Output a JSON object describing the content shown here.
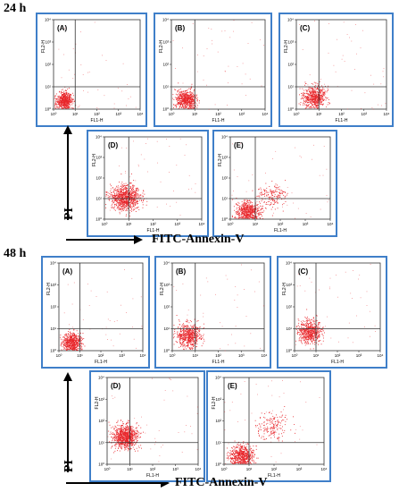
{
  "sections": [
    {
      "title": "24 h",
      "xlabel": "FITC-Annexin-V",
      "ylabel": "PI",
      "panels": [
        {
          "label": "(A)",
          "xtick_label": "FL1-H",
          "ytick_label": "FL2-H"
        },
        {
          "label": "(B)",
          "xtick_label": "FL1-H",
          "ytick_label": "FL2-H"
        },
        {
          "label": "(C)",
          "xtick_label": "FL1-H",
          "ytick_label": "FL2-H"
        },
        {
          "label": "(D)",
          "xtick_label": "FL1-H",
          "ytick_label": "FL2-H"
        },
        {
          "label": "(E)",
          "xtick_label": "FL1-H",
          "ytick_label": "FL2-H"
        }
      ]
    },
    {
      "title": "48 h",
      "xlabel": "FITC-Annexin-V",
      "ylabel": "PI",
      "panels": [
        {
          "label": "(A)",
          "xtick_label": "FL1-H",
          "ytick_label": "FL2-H"
        },
        {
          "label": "(B)",
          "xtick_label": "FL1-H",
          "ytick_label": "FL2-H"
        },
        {
          "label": "(C)",
          "xtick_label": "FL1-H",
          "ytick_label": "FL2-H"
        },
        {
          "label": "(D)",
          "xtick_label": "FL1-H",
          "ytick_label": "FL2-H"
        },
        {
          "label": "(E)",
          "xtick_label": "FL1-H",
          "ytick_label": "FL2-H"
        }
      ]
    }
  ],
  "chart_data": [
    {
      "type": "scatter",
      "title": "24 h",
      "xlabel": "FITC-Annexin-V",
      "ylabel": "PI",
      "xscale": "log",
      "yscale": "log",
      "xlim": [
        1,
        10000
      ],
      "ylim": [
        1,
        10000
      ],
      "xticks": [
        "10⁰",
        "10¹",
        "10²",
        "10³",
        "10⁴"
      ],
      "yticks": [
        "10⁰",
        "10¹",
        "10²",
        "10³",
        "10⁴"
      ],
      "quadrant_gate": {
        "x": 10,
        "y": 10
      },
      "point_color": "#e8262b",
      "panels": [
        {
          "label": "(A)",
          "clusters": [
            {
              "x": 3,
              "y": 2.5,
              "spread": 2.2,
              "density": "high"
            }
          ]
        },
        {
          "label": "(B)",
          "clusters": [
            {
              "x": 4,
              "y": 2.8,
              "spread": 2.4,
              "density": "high"
            }
          ]
        },
        {
          "label": "(C)",
          "clusters": [
            {
              "x": 6,
              "y": 3.5,
              "spread": 2.8,
              "density": "high"
            }
          ]
        },
        {
          "label": "(D)",
          "clusters": [
            {
              "x": 7,
              "y": 12,
              "spread": 3.5,
              "density": "very high"
            }
          ]
        },
        {
          "label": "(E)",
          "clusters": [
            {
              "x": 5,
              "y": 2.5,
              "spread": 2.6,
              "density": "high"
            },
            {
              "x": 40,
              "y": 15,
              "spread": 3.5,
              "density": "medium"
            }
          ]
        }
      ]
    },
    {
      "type": "scatter",
      "title": "48 h",
      "xlabel": "FITC-Annexin-V",
      "ylabel": "PI",
      "xscale": "log",
      "yscale": "log",
      "xlim": [
        1,
        10000
      ],
      "ylim": [
        1,
        10000
      ],
      "xticks": [
        "10⁰",
        "10¹",
        "10²",
        "10³",
        "10⁴"
      ],
      "yticks": [
        "10⁰",
        "10¹",
        "10²",
        "10³",
        "10⁴"
      ],
      "quadrant_gate": {
        "x": 10,
        "y": 10
      },
      "point_color": "#e8262b",
      "panels": [
        {
          "label": "(A)",
          "clusters": [
            {
              "x": 4,
              "y": 2.5,
              "spread": 2.4,
              "density": "high"
            }
          ]
        },
        {
          "label": "(B)",
          "clusters": [
            {
              "x": 5,
              "y": 5,
              "spread": 3.0,
              "density": "high"
            }
          ]
        },
        {
          "label": "(C)",
          "clusters": [
            {
              "x": 5,
              "y": 8,
              "spread": 3.0,
              "density": "high"
            }
          ]
        },
        {
          "label": "(D)",
          "clusters": [
            {
              "x": 6,
              "y": 20,
              "spread": 3.0,
              "density": "very high"
            }
          ]
        },
        {
          "label": "(E)",
          "clusters": [
            {
              "x": 5,
              "y": 2.5,
              "spread": 2.6,
              "density": "high"
            },
            {
              "x": 80,
              "y": 60,
              "spread": 4.5,
              "density": "medium"
            }
          ]
        }
      ]
    }
  ]
}
